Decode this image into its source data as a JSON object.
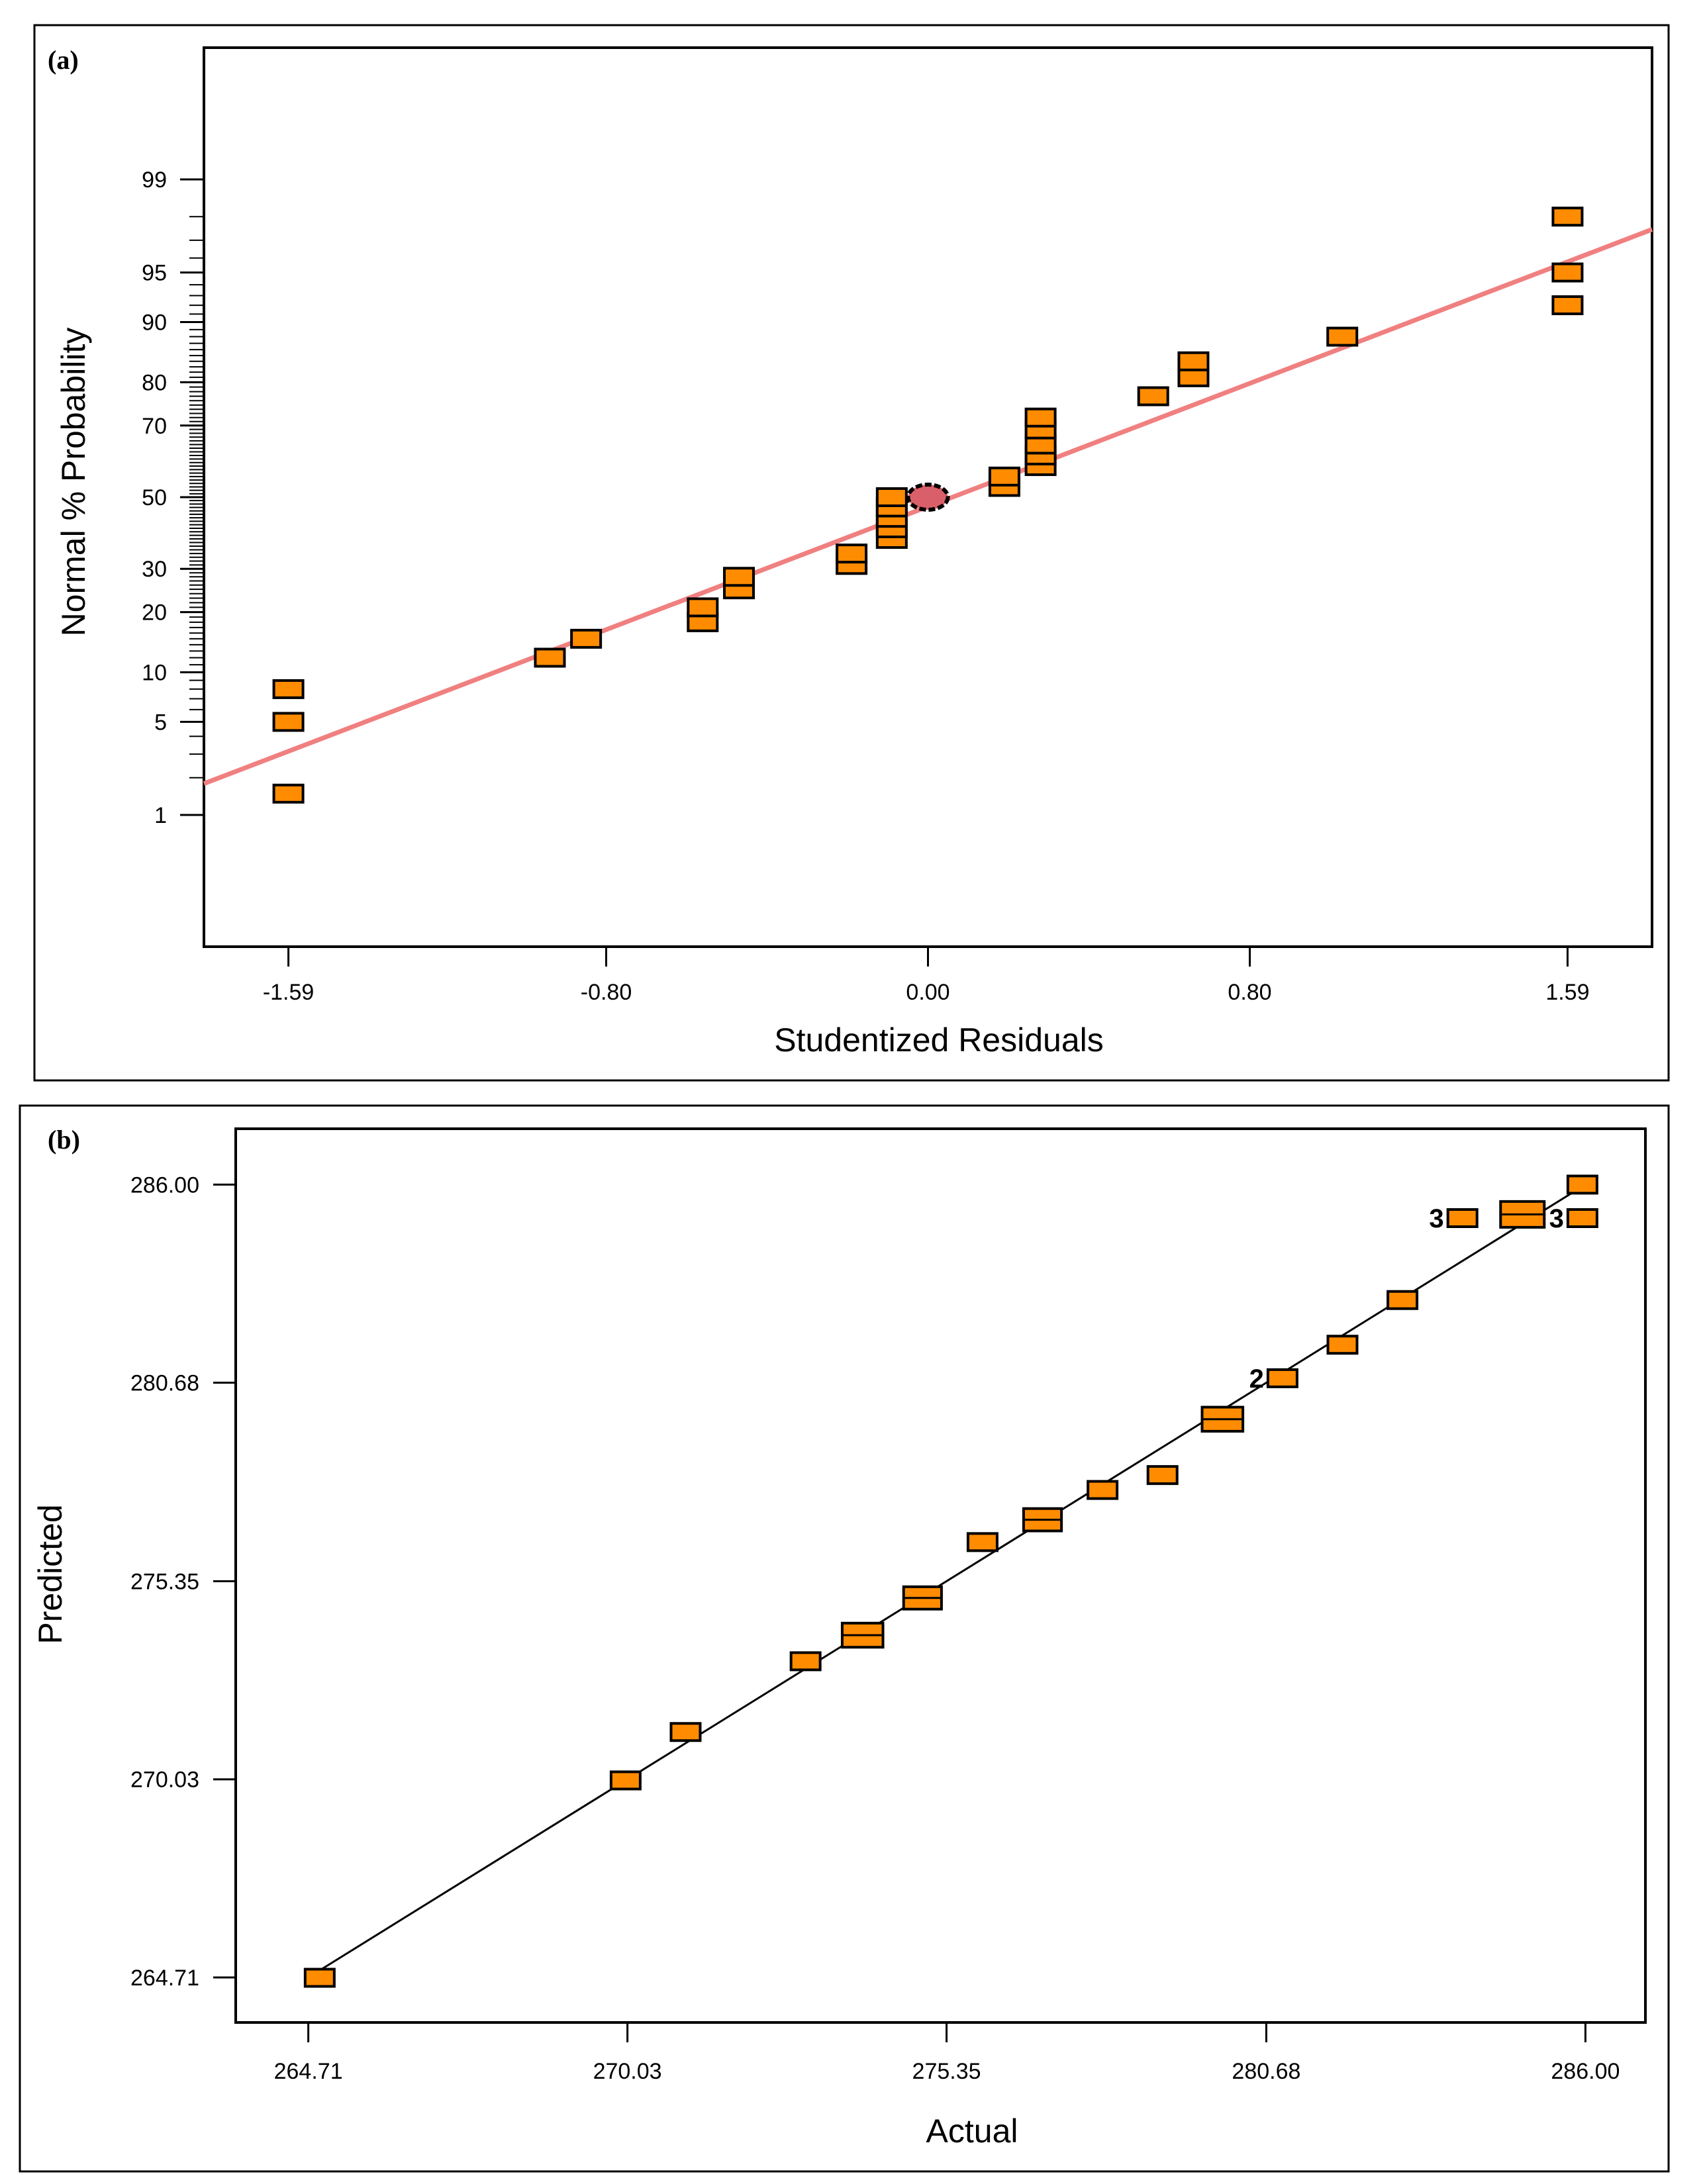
{
  "chart_data": [
    {
      "panel": "(a)",
      "type": "scatter",
      "title": "",
      "xlabel": "Studentized Residuals",
      "ylabel": "Normal % Probability",
      "xlim": [
        -1.8,
        1.8
      ],
      "xticks": [
        -1.59,
        -0.8,
        0.0,
        0.8,
        1.59
      ],
      "xtick_labels": [
        "-1.59",
        "-0.80",
        "0.00",
        "0.80",
        "1.59"
      ],
      "yscale": "normal probability",
      "yticks": [
        1,
        5,
        10,
        20,
        30,
        50,
        70,
        80,
        90,
        95,
        99
      ],
      "ytick_labels": [
        "1",
        "5",
        "10",
        "20",
        "30",
        "50",
        "70",
        "80",
        "90",
        "95",
        "99"
      ],
      "fit_line": {
        "x": [
          -1.8,
          1.8
        ],
        "y": [
          1.8,
          97.5
        ],
        "color": "#f08080"
      },
      "design_point": {
        "x": 0.0,
        "y": 50
      },
      "points": [
        {
          "x": -1.59,
          "y": 1.5
        },
        {
          "x": -1.59,
          "y": 5
        },
        {
          "x": -1.59,
          "y": 8
        },
        {
          "x": -0.94,
          "y": 12
        },
        {
          "x": -0.85,
          "y": 15
        },
        {
          "x": -0.56,
          "y": 18
        },
        {
          "x": -0.56,
          "y": 21
        },
        {
          "x": -0.47,
          "y": 25
        },
        {
          "x": -0.47,
          "y": 28
        },
        {
          "x": -0.19,
          "y": 31
        },
        {
          "x": -0.19,
          "y": 34
        },
        {
          "x": -0.09,
          "y": 38
        },
        {
          "x": -0.09,
          "y": 41
        },
        {
          "x": -0.09,
          "y": 44
        },
        {
          "x": -0.09,
          "y": 47
        },
        {
          "x": -0.09,
          "y": 50
        },
        {
          "x": 0.19,
          "y": 53
        },
        {
          "x": 0.19,
          "y": 56
        },
        {
          "x": 0.28,
          "y": 59
        },
        {
          "x": 0.28,
          "y": 62
        },
        {
          "x": 0.28,
          "y": 65
        },
        {
          "x": 0.28,
          "y": 69
        },
        {
          "x": 0.28,
          "y": 72
        },
        {
          "x": 0.56,
          "y": 77
        },
        {
          "x": 0.66,
          "y": 81
        },
        {
          "x": 0.66,
          "y": 84
        },
        {
          "x": 1.03,
          "y": 88
        },
        {
          "x": 1.59,
          "y": 92
        },
        {
          "x": 1.59,
          "y": 95
        },
        {
          "x": 1.59,
          "y": 98
        }
      ],
      "marker_color": "#ff8c00"
    },
    {
      "panel": "(b)",
      "type": "scatter",
      "title": "",
      "xlabel": "Actual",
      "ylabel": "Predicted",
      "xlim": [
        263.5,
        287.0
      ],
      "ylim": [
        263.5,
        287.5
      ],
      "xticks": [
        264.71,
        270.03,
        275.35,
        280.68,
        286.0
      ],
      "xtick_labels": [
        "264.71",
        "270.03",
        "275.35",
        "280.68",
        "286.00"
      ],
      "yticks": [
        264.71,
        270.03,
        275.35,
        280.68,
        286.0
      ],
      "ytick_labels": [
        "264.71",
        "270.03",
        "275.35",
        "280.68",
        "286.00"
      ],
      "fit_line": {
        "x": [
          264.9,
          286.0
        ],
        "y": [
          264.9,
          286.0
        ],
        "color": "#000000"
      },
      "points": [
        {
          "x": 264.9,
          "y": 264.7
        },
        {
          "x": 270.0,
          "y": 270.0
        },
        {
          "x": 271.0,
          "y": 271.3
        },
        {
          "x": 273.0,
          "y": 273.2
        },
        {
          "x": 273.95,
          "y": 273.9,
          "size": 1.4
        },
        {
          "x": 274.95,
          "y": 274.9,
          "size": 1.3
        },
        {
          "x": 275.95,
          "y": 276.4
        },
        {
          "x": 276.95,
          "y": 277.0,
          "size": 1.3
        },
        {
          "x": 277.95,
          "y": 277.8
        },
        {
          "x": 278.95,
          "y": 278.2
        },
        {
          "x": 279.95,
          "y": 279.7,
          "size": 1.4
        },
        {
          "x": 280.95,
          "y": 280.8,
          "label": "2"
        },
        {
          "x": 281.95,
          "y": 281.7
        },
        {
          "x": 282.95,
          "y": 282.9
        },
        {
          "x": 283.95,
          "y": 285.1,
          "label": "3"
        },
        {
          "x": 284.95,
          "y": 285.2,
          "size": 1.5
        },
        {
          "x": 285.95,
          "y": 285.1,
          "label": "3"
        },
        {
          "x": 285.95,
          "y": 286.0
        }
      ],
      "marker_color": "#ff8c00"
    }
  ]
}
